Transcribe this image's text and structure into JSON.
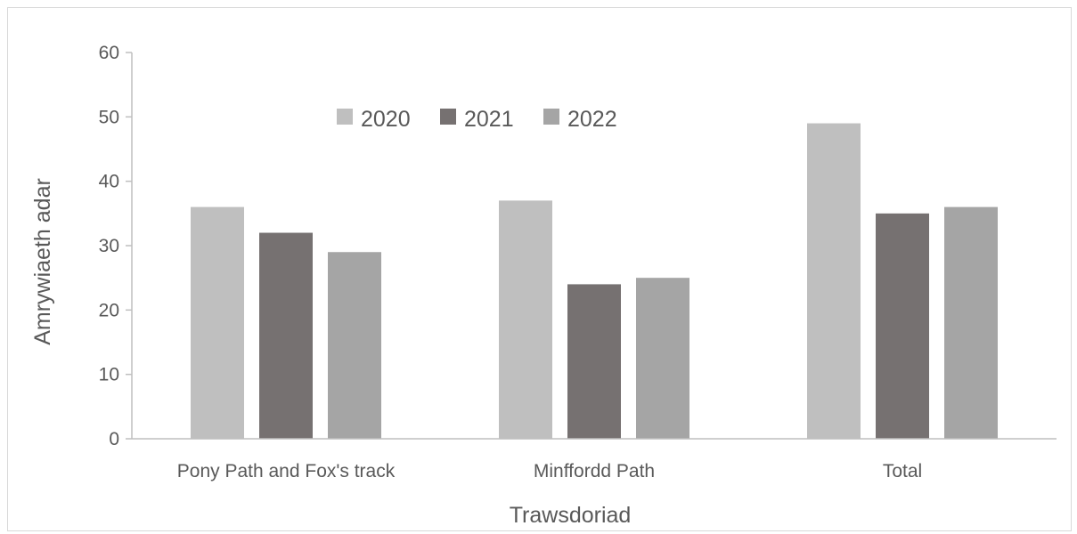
{
  "chart_data": {
    "type": "bar",
    "title": "",
    "xlabel": "Trawsdoriad",
    "ylabel": "Amrywiaeth adar",
    "categories": [
      "Pony Path and Fox's track",
      "Minffordd Path",
      "Total"
    ],
    "series": [
      {
        "name": "2020",
        "values": [
          36,
          37,
          49
        ],
        "color": "#bfbfbf"
      },
      {
        "name": "2021",
        "values": [
          32,
          24,
          35
        ],
        "color": "#767171"
      },
      {
        "name": "2022",
        "values": [
          29,
          25,
          36
        ],
        "color": "#a5a5a5"
      }
    ],
    "ylim": [
      0,
      60
    ],
    "yticks": [
      0,
      10,
      20,
      30,
      40,
      50,
      60
    ],
    "grid": false,
    "legend_position": "top-center"
  }
}
